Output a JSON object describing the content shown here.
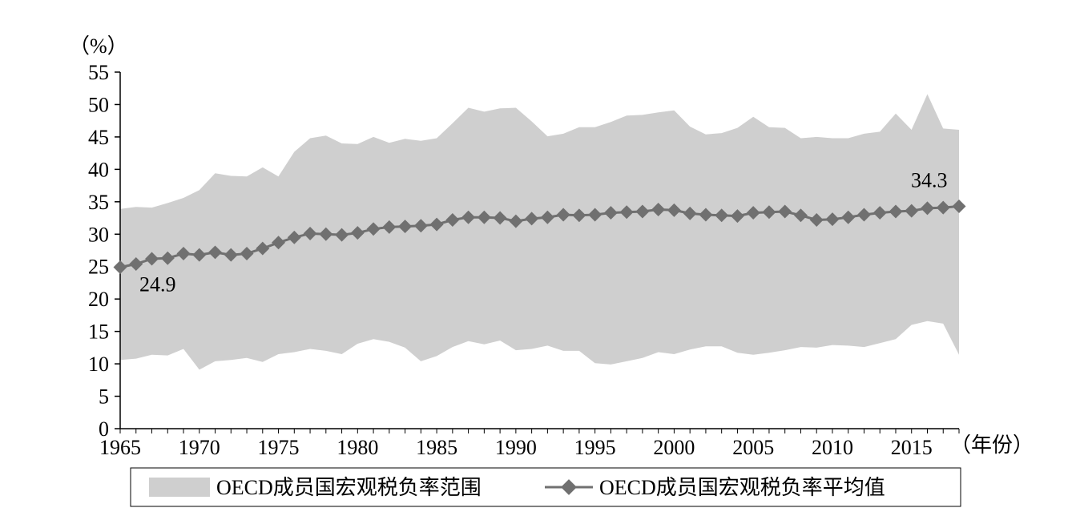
{
  "chart_data": {
    "type": "area",
    "y_unit": "（%）",
    "x_unit": "（年份）",
    "ylim": [
      0,
      55
    ],
    "yticks": [
      "0",
      "5",
      "10",
      "15",
      "20",
      "25",
      "30",
      "35",
      "40",
      "45",
      "50",
      "55"
    ],
    "xlim": [
      1965,
      2018
    ],
    "xticks": [
      "1965",
      "1970",
      "1975",
      "1980",
      "1985",
      "1990",
      "1995",
      "2000",
      "2005",
      "2010",
      "2015"
    ],
    "grid": false,
    "legend_position": "bottom",
    "colors": {
      "range_fill": "#cfcfcf",
      "mean_line": "#707070"
    },
    "x": [
      1965,
      1966,
      1967,
      1968,
      1969,
      1970,
      1971,
      1972,
      1973,
      1974,
      1975,
      1976,
      1977,
      1978,
      1979,
      1980,
      1981,
      1982,
      1983,
      1984,
      1985,
      1986,
      1987,
      1988,
      1989,
      1990,
      1991,
      1992,
      1993,
      1994,
      1995,
      1996,
      1997,
      1998,
      1999,
      2000,
      2001,
      2002,
      2003,
      2004,
      2005,
      2006,
      2007,
      2008,
      2009,
      2010,
      2011,
      2012,
      2013,
      2014,
      2015,
      2016,
      2017,
      2018
    ],
    "series": [
      {
        "name": "OECD成员国宏观税负率范围",
        "kind": "band",
        "upper": [
          33.9,
          34.2,
          34.1,
          34.8,
          35.6,
          36.8,
          39.4,
          39.0,
          38.9,
          40.3,
          38.9,
          42.7,
          44.8,
          45.2,
          44.0,
          43.9,
          45.0,
          44.1,
          44.7,
          44.4,
          44.8,
          47.1,
          49.5,
          48.9,
          49.4,
          49.5,
          47.4,
          45.1,
          45.5,
          46.5,
          46.5,
          47.3,
          48.3,
          48.4,
          48.8,
          49.1,
          46.6,
          45.4,
          45.6,
          46.4,
          48.1,
          46.5,
          46.4,
          44.8,
          45.0,
          44.8,
          44.8,
          45.5,
          45.8,
          48.6,
          46.1,
          51.6,
          46.3,
          46.1
        ],
        "lower": [
          10.6,
          10.8,
          11.4,
          11.3,
          12.3,
          9.1,
          10.4,
          10.6,
          10.9,
          10.3,
          11.5,
          11.8,
          12.3,
          12.0,
          11.5,
          13.1,
          13.8,
          13.4,
          12.5,
          10.4,
          11.2,
          12.6,
          13.5,
          13.0,
          13.6,
          12.1,
          12.3,
          12.8,
          12.0,
          12.0,
          10.1,
          9.9,
          10.4,
          10.9,
          11.8,
          11.5,
          12.2,
          12.7,
          12.7,
          11.7,
          11.4,
          11.7,
          12.1,
          12.6,
          12.5,
          12.9,
          12.8,
          12.6,
          13.2,
          13.8,
          16.0,
          16.6,
          16.2,
          11.4
        ]
      },
      {
        "name": "OECD成员国宏观税负率平均值",
        "kind": "line",
        "values": [
          24.9,
          25.4,
          26.2,
          26.3,
          27.0,
          26.8,
          27.2,
          26.8,
          27.0,
          27.8,
          28.7,
          29.5,
          30.1,
          30.0,
          29.9,
          30.2,
          30.8,
          31.1,
          31.2,
          31.3,
          31.5,
          32.2,
          32.6,
          32.6,
          32.5,
          32.0,
          32.4,
          32.6,
          33.0,
          32.9,
          33.0,
          33.3,
          33.4,
          33.5,
          33.8,
          33.7,
          33.2,
          33.0,
          32.9,
          32.8,
          33.3,
          33.4,
          33.5,
          32.9,
          32.2,
          32.3,
          32.6,
          33.0,
          33.3,
          33.5,
          33.6,
          34.0,
          34.1,
          34.3
        ]
      }
    ],
    "annotations": [
      {
        "text": "24.9",
        "x": 1965,
        "y": 24.9
      },
      {
        "text": "34.3",
        "x": 2018,
        "y": 34.3
      }
    ]
  }
}
